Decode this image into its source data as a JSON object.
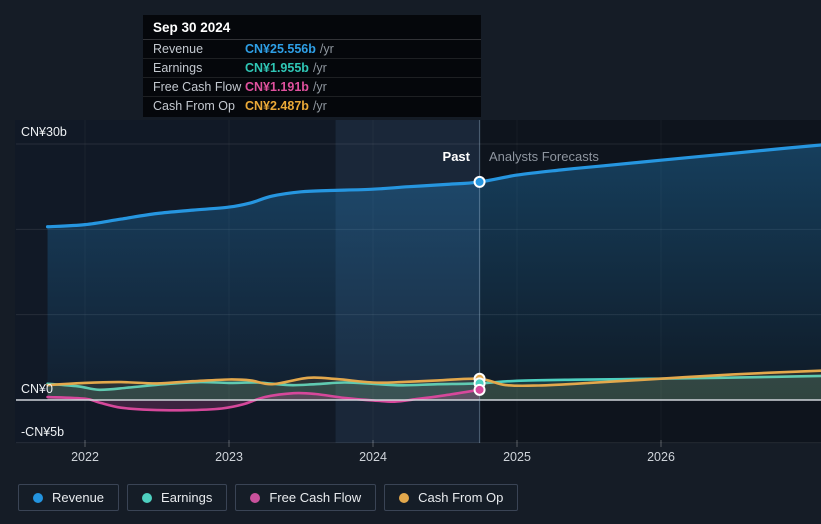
{
  "header": {
    "past_label": "Past",
    "forecast_label": "Analysts Forecasts"
  },
  "tooltip": {
    "title": "Sep 30 2024",
    "rows": [
      {
        "label": "Revenue",
        "value": "CN¥25.556b",
        "suffix": "/yr",
        "color": "#2e9fe6"
      },
      {
        "label": "Earnings",
        "value": "CN¥1.955b",
        "suffix": "/yr",
        "color": "#2fc6b5"
      },
      {
        "label": "Free Cash Flow",
        "value": "CN¥1.191b",
        "suffix": "/yr",
        "color": "#e0519e"
      },
      {
        "label": "Cash From Op",
        "value": "CN¥2.487b",
        "suffix": "/yr",
        "color": "#eaa938"
      }
    ]
  },
  "legend": {
    "items": [
      {
        "label": "Revenue",
        "color": "#2394df"
      },
      {
        "label": "Earnings",
        "color": "#4ed0c0"
      },
      {
        "label": "Free Cash Flow",
        "color": "#c9519c"
      },
      {
        "label": "Cash From Op",
        "color": "#e3a84c"
      }
    ]
  },
  "chart_data": {
    "type": "line",
    "currency": "CN¥",
    "unit": "billions",
    "x_axis": {
      "ticks": [
        {
          "year": 2022,
          "label": "2022"
        },
        {
          "year": 2023,
          "label": "2023"
        },
        {
          "year": 2024,
          "label": "2024"
        },
        {
          "year": 2025,
          "label": "2025"
        },
        {
          "year": 2026,
          "label": "2026"
        }
      ],
      "range": [
        2021.7,
        2027.12
      ]
    },
    "y_axis": {
      "labels": [
        {
          "text": "CN¥30b",
          "value": 30
        },
        {
          "text": "CN¥0",
          "value": 0
        },
        {
          "text": "-CN¥5b",
          "value": -5
        }
      ],
      "gridline_values": [
        30,
        20,
        10,
        -5
      ],
      "zero_value": 0,
      "range": [
        -7.5,
        31.5
      ]
    },
    "divider_year": 2024.74,
    "highlight_band": [
      2023.74,
      2024.74
    ],
    "series": [
      {
        "name": "Revenue",
        "color": "#2696e0",
        "line_width": 3.2,
        "fill": "gradient",
        "past": [
          [
            2021.74,
            20.3
          ],
          [
            2022.0,
            20.55
          ],
          [
            2022.25,
            21.2
          ],
          [
            2022.5,
            21.85
          ],
          [
            2022.75,
            22.25
          ],
          [
            2023.0,
            22.6
          ],
          [
            2023.15,
            23.1
          ],
          [
            2023.3,
            23.9
          ],
          [
            2023.5,
            24.4
          ],
          [
            2023.7,
            24.55
          ],
          [
            2024.0,
            24.7
          ],
          [
            2024.25,
            25.0
          ],
          [
            2024.5,
            25.25
          ],
          [
            2024.74,
            25.556
          ]
        ],
        "forecast": [
          [
            2025.0,
            26.35
          ],
          [
            2025.3,
            26.95
          ],
          [
            2025.6,
            27.45
          ],
          [
            2026.0,
            28.1
          ],
          [
            2026.4,
            28.75
          ],
          [
            2026.8,
            29.4
          ],
          [
            2027.12,
            29.9
          ]
        ]
      },
      {
        "name": "Earnings",
        "color": "#4ed0c0",
        "line_width": 2.6,
        "fill": "rgba(78,208,192,0.17)",
        "past": [
          [
            2021.74,
            1.9
          ],
          [
            2021.95,
            1.6
          ],
          [
            2022.1,
            1.2
          ],
          [
            2022.3,
            1.45
          ],
          [
            2022.55,
            1.85
          ],
          [
            2022.8,
            2.1
          ],
          [
            2023.0,
            2.0
          ],
          [
            2023.2,
            2.05
          ],
          [
            2023.42,
            1.75
          ],
          [
            2023.6,
            1.85
          ],
          [
            2023.8,
            2.05
          ],
          [
            2024.0,
            1.9
          ],
          [
            2024.2,
            1.72
          ],
          [
            2024.45,
            1.85
          ],
          [
            2024.74,
            1.955
          ]
        ],
        "forecast": [
          [
            2025.0,
            2.25
          ],
          [
            2025.4,
            2.38
          ],
          [
            2025.9,
            2.48
          ],
          [
            2026.4,
            2.6
          ],
          [
            2026.8,
            2.72
          ],
          [
            2027.12,
            2.82
          ]
        ]
      },
      {
        "name": "Cash From Op",
        "color": "#e3a84c",
        "line_width": 2.6,
        "fill": "rgba(227,168,76,0.12)",
        "past": [
          [
            2021.74,
            1.75
          ],
          [
            2022.0,
            2.0
          ],
          [
            2022.25,
            2.1
          ],
          [
            2022.5,
            1.95
          ],
          [
            2022.75,
            2.2
          ],
          [
            2023.0,
            2.4
          ],
          [
            2023.15,
            2.3
          ],
          [
            2023.3,
            1.85
          ],
          [
            2023.55,
            2.6
          ],
          [
            2023.75,
            2.45
          ],
          [
            2024.0,
            2.05
          ],
          [
            2024.2,
            2.1
          ],
          [
            2024.45,
            2.3
          ],
          [
            2024.74,
            2.487
          ]
        ],
        "forecast": [
          [
            2024.92,
            1.75
          ],
          [
            2025.15,
            1.7
          ],
          [
            2025.5,
            2.0
          ],
          [
            2026.0,
            2.5
          ],
          [
            2026.5,
            3.0
          ],
          [
            2027.12,
            3.45
          ]
        ]
      },
      {
        "name": "Free Cash Flow",
        "color": "#d6489b",
        "line_width": 2.6,
        "fill": "rgba(214,72,155,0.22)",
        "past": [
          [
            2021.74,
            0.35
          ],
          [
            2022.0,
            0.15
          ],
          [
            2022.1,
            -0.3
          ],
          [
            2022.25,
            -0.9
          ],
          [
            2022.45,
            -1.15
          ],
          [
            2022.7,
            -1.2
          ],
          [
            2022.95,
            -1.0
          ],
          [
            2023.1,
            -0.5
          ],
          [
            2023.25,
            0.35
          ],
          [
            2023.45,
            0.8
          ],
          [
            2023.6,
            0.7
          ],
          [
            2023.8,
            0.25
          ],
          [
            2024.0,
            -0.05
          ],
          [
            2024.15,
            -0.2
          ],
          [
            2024.3,
            0.1
          ],
          [
            2024.5,
            0.55
          ],
          [
            2024.74,
            1.191
          ]
        ],
        "forecast": []
      }
    ],
    "markers": [
      {
        "series": "Revenue",
        "year": 2024.74,
        "value": 25.556
      },
      {
        "series": "Cash From Op",
        "year": 2024.74,
        "value": 2.487
      },
      {
        "series": "Earnings",
        "year": 2024.74,
        "value": 1.955
      },
      {
        "series": "Free Cash Flow",
        "year": 2024.74,
        "value": 1.191
      }
    ]
  }
}
